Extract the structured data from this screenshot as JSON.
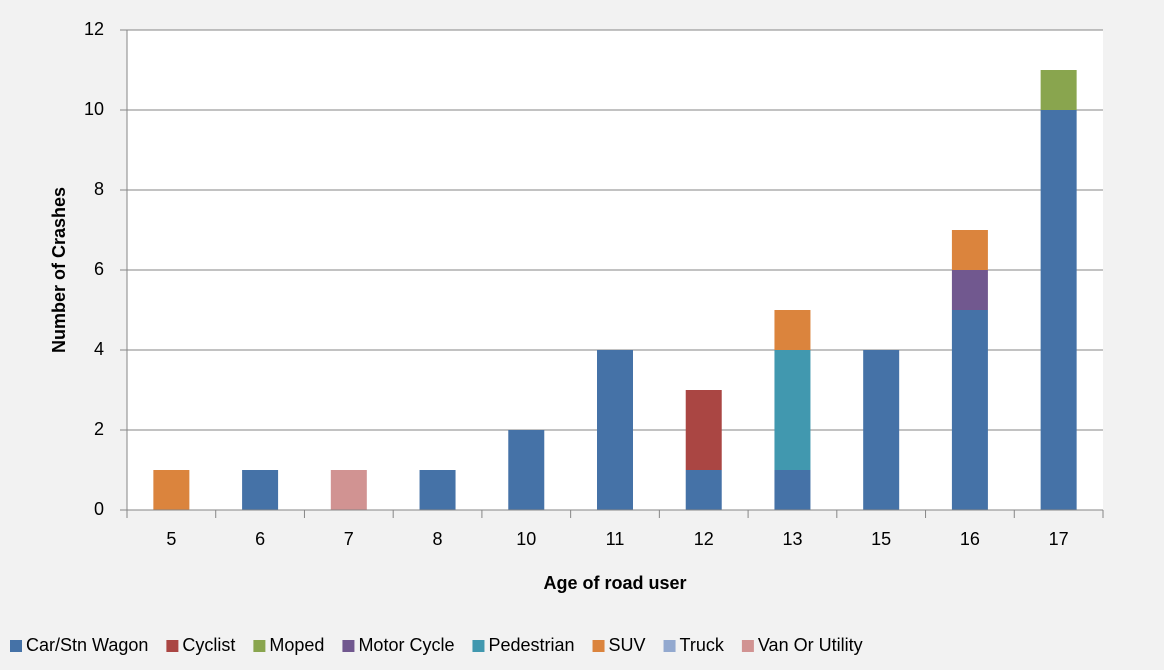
{
  "chart_data": {
    "type": "stacked_bar",
    "x_label": "Age of road user",
    "y_label": "Number of Crashes",
    "categories": [
      5,
      6,
      7,
      8,
      10,
      11,
      12,
      13,
      15,
      16,
      17
    ],
    "series": [
      {
        "name": "Car/Stn Wagon",
        "color": "#4572a7",
        "values": [
          0,
          1,
          0,
          1,
          2,
          4,
          1,
          1,
          4,
          5,
          10
        ]
      },
      {
        "name": "Cyclist",
        "color": "#aa4643",
        "values": [
          0,
          0,
          0,
          0,
          0,
          0,
          2,
          0,
          0,
          0,
          0
        ]
      },
      {
        "name": "Moped",
        "color": "#89a54e",
        "values": [
          0,
          0,
          0,
          0,
          0,
          0,
          0,
          0,
          0,
          0,
          1
        ]
      },
      {
        "name": "Motor Cycle",
        "color": "#71588f",
        "values": [
          0,
          0,
          0,
          0,
          0,
          0,
          0,
          0,
          0,
          1,
          0
        ]
      },
      {
        "name": "Pedestrian",
        "color": "#4198af",
        "values": [
          0,
          0,
          0,
          0,
          0,
          0,
          0,
          3,
          0,
          0,
          0
        ]
      },
      {
        "name": "SUV",
        "color": "#db843d",
        "values": [
          1,
          0,
          0,
          0,
          0,
          0,
          0,
          1,
          0,
          1,
          0
        ]
      },
      {
        "name": "Truck",
        "color": "#93a9cf",
        "values": [
          0,
          0,
          0,
          0,
          0,
          0,
          0,
          0,
          0,
          0,
          0
        ]
      },
      {
        "name": "Van Or Utility",
        "color": "#d19392",
        "values": [
          0,
          0,
          1,
          0,
          0,
          0,
          0,
          0,
          0,
          0,
          0
        ]
      }
    ],
    "ylim": [
      0,
      12
    ],
    "yticks": [
      0,
      2,
      4,
      6,
      8,
      10,
      12
    ],
    "grid": true,
    "legend": "bottom"
  }
}
